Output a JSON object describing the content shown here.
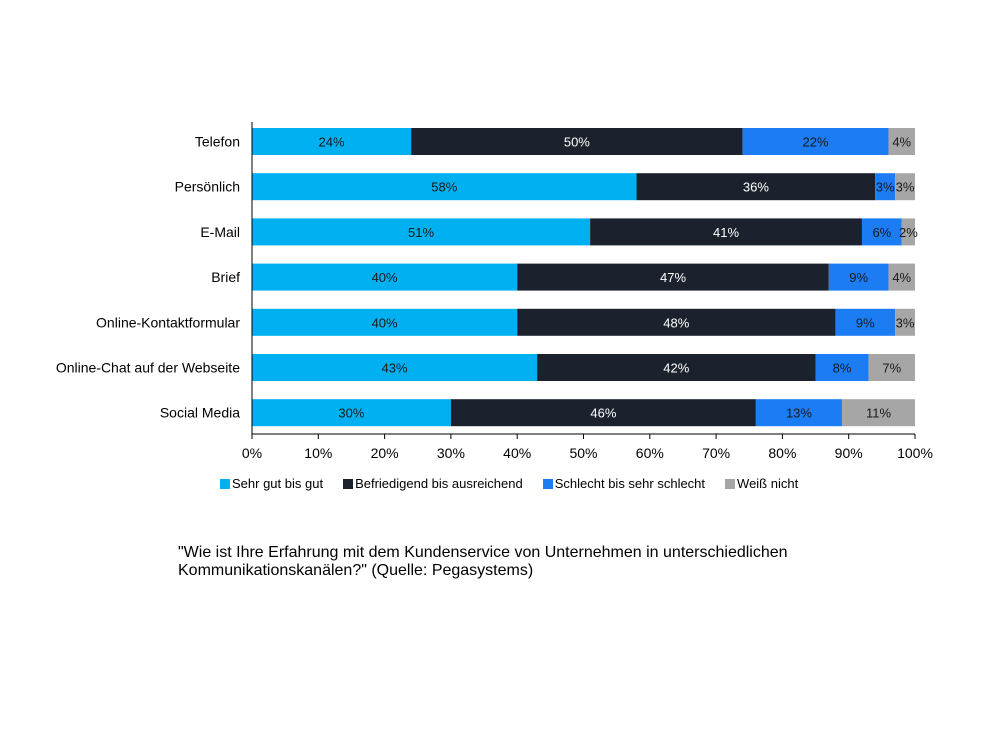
{
  "chart_data": {
    "type": "bar",
    "orientation": "horizontal",
    "stacked": true,
    "categories": [
      "Telefon",
      "Persönlich",
      "E-Mail",
      "Brief",
      "Online-Kontaktformular",
      "Online-Chat auf der Webseite",
      "Social Media"
    ],
    "series": [
      {
        "name": "Sehr gut bis gut",
        "color": "#00b0f0",
        "values": [
          24,
          58,
          51,
          40,
          40,
          43,
          30
        ],
        "labels": [
          "24%",
          "58%",
          "51%",
          "40%",
          "40%",
          "43%",
          "30%"
        ]
      },
      {
        "name": "Befriedigend bis ausreichend",
        "color": "#1c222d",
        "values": [
          50,
          36,
          41,
          47,
          48,
          42,
          46
        ],
        "labels": [
          "50%",
          "36%",
          "41%",
          "47%",
          "48%",
          "42%",
          "46%"
        ]
      },
      {
        "name": "Schlecht bis sehr schlecht",
        "color": "#1b7cf4",
        "values": [
          22,
          3,
          6,
          9,
          9,
          8,
          13
        ],
        "labels": [
          "22%",
          "3%",
          "6%",
          "9%",
          "9%",
          "8%",
          "13%"
        ]
      },
      {
        "name": "Weiß nicht",
        "color": "#a6a6a6",
        "values": [
          4,
          3,
          2,
          4,
          3,
          7,
          11
        ],
        "labels": [
          "4%",
          "3%",
          "2%",
          "4%",
          "3%",
          "7%",
          "11%"
        ]
      }
    ],
    "xlim": [
      0,
      100
    ],
    "xticks": [
      "0%",
      "10%",
      "20%",
      "30%",
      "40%",
      "50%",
      "60%",
      "70%",
      "80%",
      "90%",
      "100%"
    ],
    "grid": false,
    "legend_position": "bottom"
  },
  "caption": {
    "line1": "\"Wie ist Ihre Erfahrung mit dem Kundenservice von Unternehmen in unterschiedlichen",
    "line2": "Kommunikationskanälen?\" (Quelle: Pegasystems)"
  }
}
